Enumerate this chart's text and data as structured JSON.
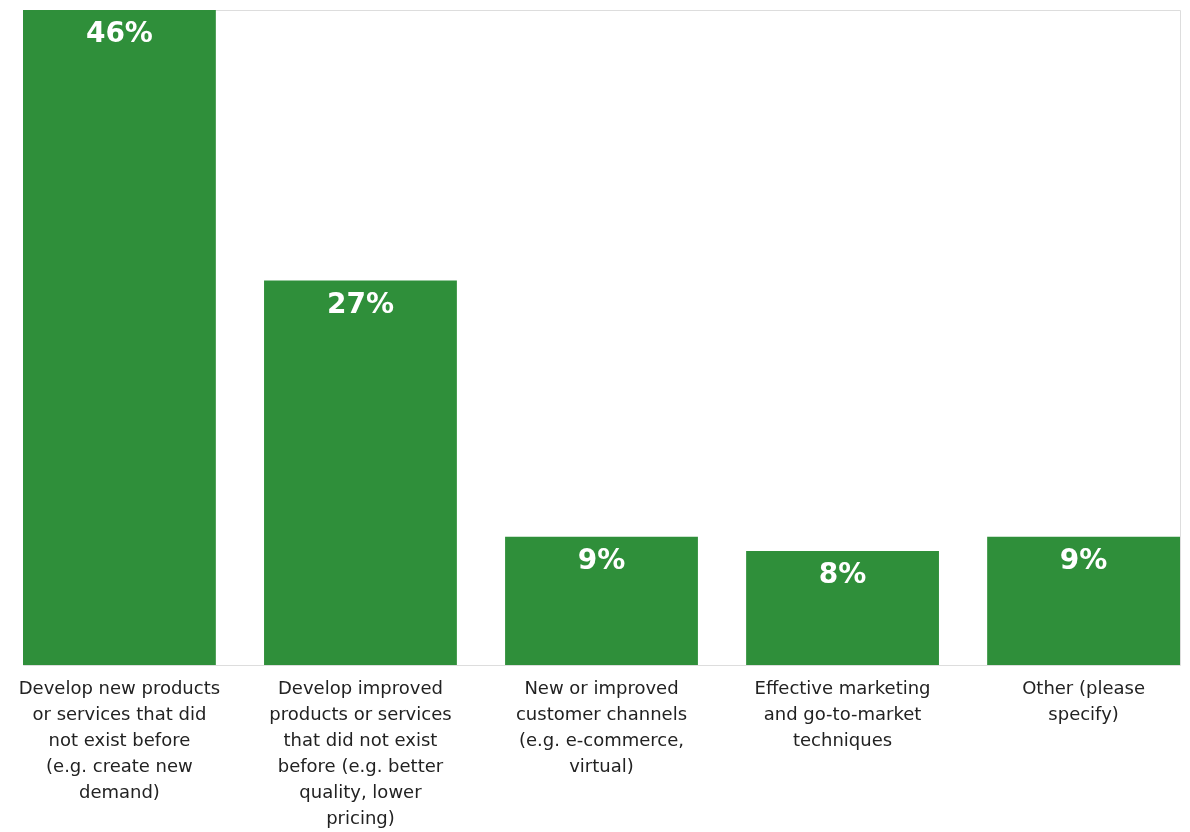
{
  "chart_data": {
    "type": "bar",
    "categories": [
      "Develop new products or services that did not exist before (e.g. create new demand)",
      "Develop improved products or services that did not exist before (e.g. better quality, lower pricing)",
      "New or improved customer channels (e.g. e-commerce, virtual)",
      "Effective marketing and go-to-market techniques",
      "Other (please specify)"
    ],
    "values": [
      46,
      27,
      9,
      8,
      9
    ],
    "color": "#2f8f3a",
    "value_labels": [
      "46%",
      "27%",
      "9%",
      "8%",
      "9%"
    ],
    "grid": false
  }
}
